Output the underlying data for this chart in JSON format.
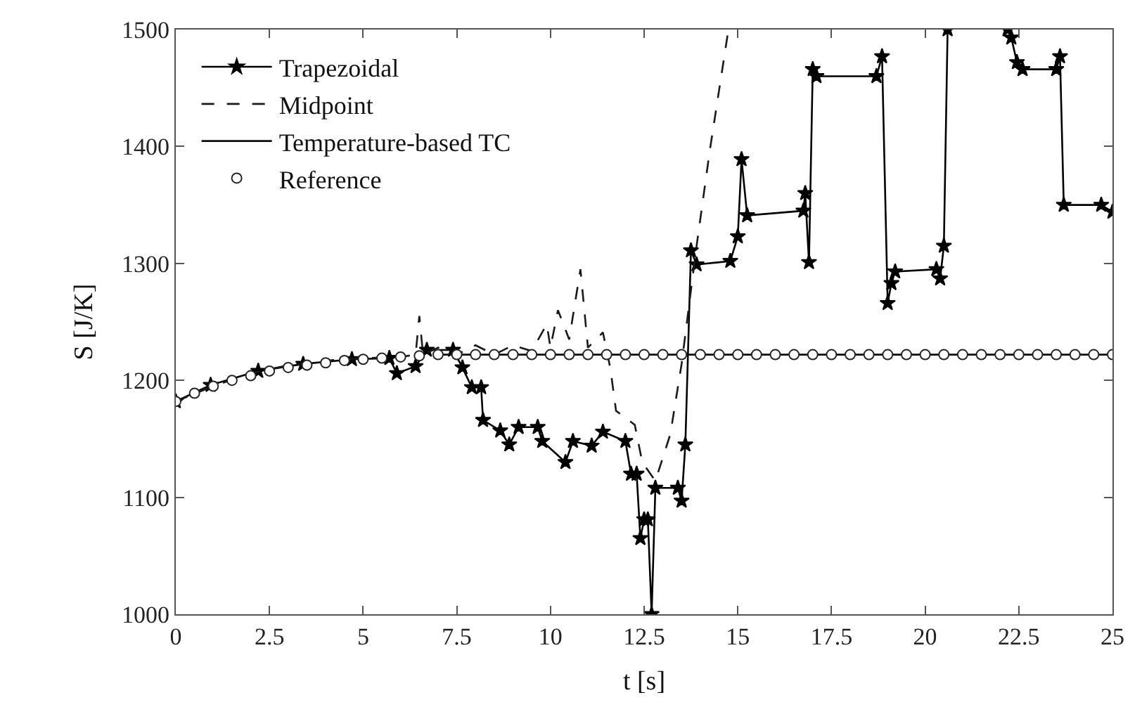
{
  "chart_data": {
    "type": "line",
    "xlabel": "t [s]",
    "ylabel": "S [J/K]",
    "xlim": [
      0,
      25
    ],
    "xticks": [
      0,
      2.5,
      5,
      7.5,
      10,
      12.5,
      15,
      17.5,
      20,
      22.5,
      25
    ],
    "ylim": [
      1000,
      1500
    ],
    "yticks": [
      1000,
      1100,
      1200,
      1300,
      1400,
      1500
    ],
    "legend": "top left",
    "series": [
      {
        "name": "Trapezoidal",
        "color": "#000000",
        "marker": "star",
        "line_style": "solid",
        "x": [
          0,
          0.93,
          2.2,
          3.4,
          4.7,
          5.7,
          5.9,
          6.4,
          6.7,
          7.4,
          7.65,
          7.9,
          8.15,
          8.2,
          8.66,
          8.9,
          9.15,
          9.66,
          9.78,
          10.4,
          10.6,
          11.1,
          11.4,
          12.0,
          12.15,
          12.3,
          12.4,
          12.5,
          12.6,
          12.7,
          12.8,
          13.4,
          13.5,
          13.6,
          13.75,
          13.9,
          14.8,
          15.0,
          15.1,
          15.25,
          16.75,
          16.8,
          16.9,
          17.0,
          17.1,
          18.7,
          18.85,
          19.0,
          19.1,
          19.2,
          20.3,
          20.4,
          20.5,
          20.6,
          21.4,
          22.2,
          22.3,
          22.45,
          22.6,
          23.5,
          23.6,
          23.7,
          24.7,
          25
        ],
        "values": [
          1182,
          1196,
          1208,
          1214,
          1218,
          1219,
          1206,
          1212,
          1226,
          1226,
          1211,
          1194,
          1194,
          1166,
          1157,
          1145,
          1160,
          1160,
          1148,
          1130,
          1148,
          1144,
          1156,
          1148,
          1120,
          1120,
          1065,
          1081,
          1081,
          1000,
          1108,
          1108,
          1097,
          1145,
          1311,
          1299,
          1302,
          1323,
          1389,
          1341,
          1345,
          1360,
          1301,
          1466,
          1460,
          1460,
          1477,
          1266,
          1283,
          1293,
          1295,
          1287,
          1315,
          1500,
          null,
          1500,
          1493,
          1472,
          1466,
          1466,
          1477,
          1350,
          1350,
          1344
        ]
      },
      {
        "name": "Midpoint",
        "color": "#1a1a1a",
        "marker": "none",
        "line_style": "dashed",
        "x": [
          0,
          1,
          2,
          3,
          4,
          5,
          6,
          6.4,
          6.5,
          6.6,
          7,
          7.5,
          8,
          8.5,
          9,
          9.5,
          9.9,
          10.0,
          10.2,
          10.5,
          10.8,
          11.0,
          11.4,
          11.6,
          11.75,
          12.25,
          12.45,
          12.8,
          13.2,
          13.5,
          13.9,
          14.25,
          14.75
        ],
        "values": [
          1182,
          1195,
          1206,
          1213,
          1217,
          1219,
          1220,
          1222,
          1255,
          1222,
          1228,
          1222,
          1230,
          1222,
          1230,
          1225,
          1248,
          1228,
          1260,
          1235,
          1295,
          1228,
          1241,
          1210,
          1174,
          1162,
          1130,
          1114,
          1154,
          1214,
          1315,
          1396,
          1500
        ]
      },
      {
        "name": "Temperature-based TC",
        "color": "#0d0d0d",
        "marker": "none",
        "line_style": "solid",
        "x": [
          7,
          25
        ],
        "values": [
          1222,
          1222
        ]
      },
      {
        "name": "Reference",
        "type": "scatter",
        "color": "#262626",
        "marker": "circle",
        "x": [
          0,
          0.5,
          1,
          1.5,
          2,
          2.5,
          3,
          3.5,
          4,
          4.5,
          5,
          5.5,
          6,
          6.5,
          7,
          7.5,
          8,
          8.5,
          9,
          9.5,
          10,
          10.5,
          11,
          11.5,
          12,
          12.5,
          13,
          13.5,
          14,
          14.5,
          15,
          15.5,
          16,
          16.5,
          17,
          17.5,
          18,
          18.5,
          19,
          19.5,
          20,
          20.5,
          21,
          21.5,
          22,
          22.5,
          23,
          23.5,
          24,
          24.5,
          25
        ],
        "values": [
          1182,
          1189,
          1195,
          1200,
          1204,
          1208,
          1211,
          1213,
          1215,
          1217,
          1218,
          1219,
          1220,
          1221,
          1222,
          1222,
          1222,
          1222,
          1222,
          1222,
          1222,
          1222,
          1222,
          1222,
          1222,
          1222,
          1222,
          1222,
          1222,
          1222,
          1222,
          1222,
          1222,
          1222,
          1222,
          1222,
          1222,
          1222,
          1222,
          1222,
          1222,
          1222,
          1222,
          1222,
          1222,
          1222,
          1222,
          1222,
          1222,
          1222,
          1222
        ]
      }
    ]
  }
}
